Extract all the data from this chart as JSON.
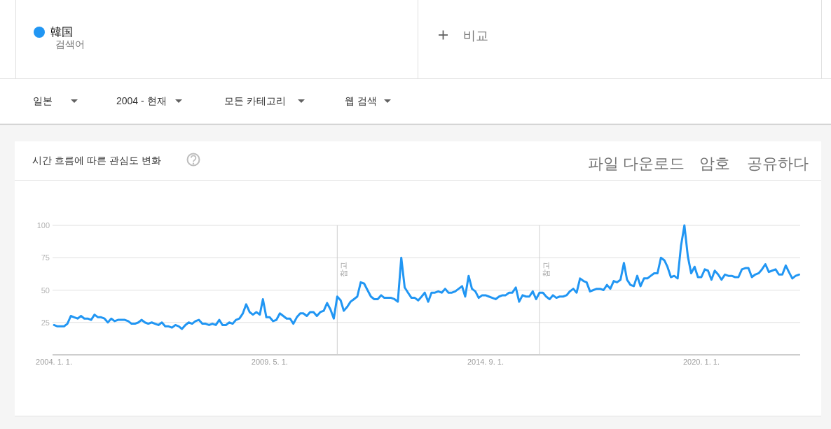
{
  "chart_data": {
    "type": "line",
    "title": "시간 흐름에 따른 관심도 변화",
    "legend": "top",
    "series": [
      {
        "name": "韓国",
        "color": "#2196f3",
        "x": [
          "2004-01",
          "2004-02",
          "2004-03",
          "2004-04",
          "2004-05",
          "2004-06",
          "2004-07",
          "2004-08",
          "2004-09",
          "2004-10",
          "2004-11",
          "2004-12",
          "2005-01",
          "2005-02",
          "2005-03",
          "2005-04",
          "2005-05",
          "2005-06",
          "2005-07",
          "2005-08",
          "2005-09",
          "2005-10",
          "2005-11",
          "2005-12",
          "2006-01",
          "2006-02",
          "2006-03",
          "2006-04",
          "2006-05",
          "2006-06",
          "2006-07",
          "2006-08",
          "2006-09",
          "2006-10",
          "2006-11",
          "2006-12",
          "2007-01",
          "2007-02",
          "2007-03",
          "2007-04",
          "2007-05",
          "2007-06",
          "2007-07",
          "2007-08",
          "2007-09",
          "2007-10",
          "2007-11",
          "2007-12",
          "2008-01",
          "2008-02",
          "2008-03",
          "2008-04",
          "2008-05",
          "2008-06",
          "2008-07",
          "2008-08",
          "2008-09",
          "2008-10",
          "2008-11",
          "2008-12",
          "2009-01",
          "2009-02",
          "2009-03",
          "2009-04",
          "2009-05",
          "2009-06",
          "2009-07",
          "2009-08",
          "2009-09",
          "2009-10",
          "2009-11",
          "2009-12",
          "2010-01",
          "2010-02",
          "2010-03",
          "2010-04",
          "2010-05",
          "2010-06",
          "2010-07",
          "2010-08",
          "2010-09",
          "2010-10",
          "2010-11",
          "2010-12",
          "2011-01",
          "2011-02",
          "2011-03",
          "2011-04",
          "2011-05",
          "2011-06",
          "2011-07",
          "2011-08",
          "2011-09",
          "2011-10",
          "2011-11",
          "2011-12",
          "2012-01",
          "2012-02",
          "2012-03",
          "2012-04",
          "2012-05",
          "2012-06",
          "2012-07",
          "2012-08",
          "2012-09",
          "2012-10",
          "2012-11",
          "2012-12",
          "2013-01",
          "2013-02",
          "2013-03",
          "2013-04",
          "2013-05",
          "2013-06",
          "2013-07",
          "2013-08",
          "2013-09",
          "2013-10",
          "2013-11",
          "2013-12",
          "2014-01",
          "2014-02",
          "2014-03",
          "2014-04",
          "2014-05",
          "2014-06",
          "2014-07",
          "2014-08",
          "2014-09",
          "2014-10",
          "2014-11",
          "2014-12",
          "2015-01",
          "2015-02",
          "2015-03",
          "2015-04",
          "2015-05",
          "2015-06",
          "2015-07",
          "2015-08",
          "2015-09",
          "2015-10",
          "2015-11",
          "2015-12",
          "2016-01",
          "2016-02",
          "2016-03",
          "2016-04",
          "2016-05",
          "2016-06",
          "2016-07",
          "2016-08",
          "2016-09",
          "2016-10",
          "2016-11",
          "2016-12",
          "2017-01",
          "2017-02",
          "2017-03",
          "2017-04",
          "2017-05",
          "2017-06",
          "2017-07",
          "2017-08",
          "2017-09",
          "2017-10",
          "2017-11",
          "2017-12",
          "2018-01",
          "2018-02",
          "2018-03",
          "2018-04",
          "2018-05",
          "2018-06",
          "2018-07",
          "2018-08",
          "2018-09",
          "2018-10",
          "2018-11",
          "2018-12",
          "2019-01",
          "2019-02",
          "2019-03",
          "2019-04",
          "2019-05",
          "2019-06",
          "2019-07",
          "2019-08",
          "2019-09",
          "2019-10",
          "2019-11",
          "2019-12",
          "2020-01",
          "2020-02",
          "2020-03",
          "2020-04",
          "2020-05",
          "2020-06",
          "2020-07",
          "2020-08",
          "2020-09",
          "2020-10",
          "2020-11",
          "2020-12",
          "2021-01",
          "2021-02",
          "2021-03",
          "2021-04",
          "2021-05",
          "2021-06",
          "2021-07",
          "2021-08",
          "2021-09",
          "2021-10",
          "2021-11",
          "2021-12",
          "2022-01",
          "2022-02",
          "2022-03",
          "2022-04",
          "2022-05",
          "2022-06"
        ],
        "values": [
          23,
          22,
          22,
          22,
          24,
          30,
          29,
          28,
          30,
          28,
          28,
          27,
          31,
          29,
          29,
          28,
          25,
          28,
          26,
          27,
          27,
          27,
          26,
          24,
          24,
          25,
          27,
          25,
          24,
          25,
          24,
          23,
          25,
          22,
          22,
          21,
          23,
          22,
          20,
          23,
          25,
          24,
          26,
          27,
          24,
          24,
          23,
          24,
          23,
          27,
          23,
          23,
          25,
          24,
          27,
          28,
          32,
          39,
          33,
          31,
          33,
          31,
          43,
          29,
          29,
          26,
          27,
          32,
          30,
          28,
          28,
          24,
          29,
          32,
          32,
          30,
          33,
          33,
          30,
          33,
          34,
          40,
          35,
          28,
          45,
          42,
          34,
          37,
          41,
          43,
          45,
          56,
          55,
          50,
          45,
          43,
          43,
          46,
          44,
          44,
          44,
          43,
          41,
          75,
          52,
          48,
          44,
          44,
          42,
          45,
          48,
          41,
          48,
          48,
          49,
          48,
          51,
          48,
          48,
          49,
          51,
          53,
          45,
          61,
          51,
          49,
          44,
          46,
          46,
          45,
          44,
          43,
          45,
          46,
          46,
          48,
          48,
          52,
          41,
          46,
          45,
          45,
          49,
          43,
          48,
          48,
          45,
          43,
          46,
          44,
          45,
          45,
          46,
          49,
          51,
          48,
          59,
          57,
          56,
          49,
          50,
          51,
          51,
          50,
          54,
          51,
          57,
          56,
          58,
          71,
          58,
          54,
          53,
          61,
          53,
          59,
          59,
          61,
          63,
          63,
          75,
          73,
          68,
          60,
          61,
          59,
          84,
          100,
          76,
          63,
          68,
          60,
          60,
          66,
          65,
          58,
          65,
          62,
          58,
          62,
          61,
          61,
          60,
          60,
          66,
          67,
          67,
          60,
          62,
          63,
          66,
          70,
          64,
          65,
          66,
          62,
          62,
          69,
          64,
          59,
          61,
          62
        ]
      }
    ],
    "xlim": [
      "2003-12-19",
      "2022-06-11"
    ],
    "xticks": [
      {
        "value": "2004-01-01",
        "label": "2004. 1. 1."
      },
      {
        "value": "2009-05-01",
        "label": "2009. 5. 1."
      },
      {
        "value": "2014-09-01",
        "label": "2014. 9. 1."
      },
      {
        "value": "2020-01-01",
        "label": "2020. 1. 1."
      }
    ],
    "ylim": [
      0,
      100
    ],
    "yticks": [
      25,
      50,
      75,
      100
    ],
    "grid": "y",
    "ref_lines": [
      {
        "axis": "x",
        "value": "2011-01",
        "label": "참고"
      },
      {
        "axis": "x",
        "value": "2016-01",
        "label": "참고"
      }
    ],
    "annotations": [
      "검색어",
      "비교",
      "일본",
      "2004 - 현재",
      "모든 카테고리",
      "웹 검색",
      "파일 다운로드",
      "암호",
      "공유하다"
    ]
  }
}
